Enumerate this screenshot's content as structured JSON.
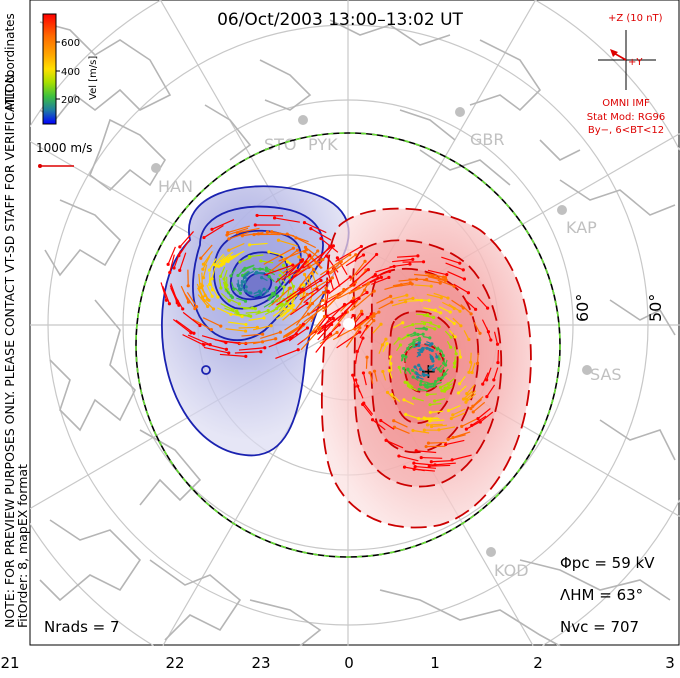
{
  "title": "06/Oct/2003 13:00–13:02 UT",
  "colorbar": {
    "unit_label": "Vel [m/s]",
    "ticks": [
      "600",
      "400",
      "200"
    ],
    "coord_label": "MLT coordinates",
    "colors": [
      "#ff0000",
      "#ff6a00",
      "#ffaa00",
      "#ffe000",
      "#a8e000",
      "#3cc040",
      "#2080a0",
      "#0000ff"
    ]
  },
  "scale_vector_label": "1000 m/s",
  "imf": {
    "z_label": "+Z (10 nT)",
    "y_label": "+Y",
    "model_title": "OMNI IMF",
    "stat_mod": "Stat Mod: RG96",
    "condition": "By−, 6<BT<12",
    "color": "#dd0000"
  },
  "stations": [
    "STO",
    "PYK",
    "HAN",
    "GBR",
    "KAP",
    "SAS",
    "KOD"
  ],
  "latitude_labels": [
    "60°",
    "50°"
  ],
  "side_notes": {
    "warning": "NOTE: FOR PREVIEW PURPOSES ONLY. PLEASE CONTACT VT-SD STAFF FOR VERIFICATION.",
    "fit": "FitOrder: 8, mapEX format"
  },
  "params": {
    "phi_pc": "Φpc = 59 kV",
    "lambda_hm": "ΛHM = 63°",
    "n_vc": "Nvc = 707",
    "n_rads": "Nrads = 7"
  },
  "mlt_ticks": [
    "21",
    "22",
    "23",
    "0",
    "1",
    "2",
    "3"
  ],
  "colors": {
    "dusk_cell": "#1a22b0",
    "dawn_cell": "#cc0000",
    "coastline": "#b5b5b5",
    "grid": "#c8c8c8"
  }
}
